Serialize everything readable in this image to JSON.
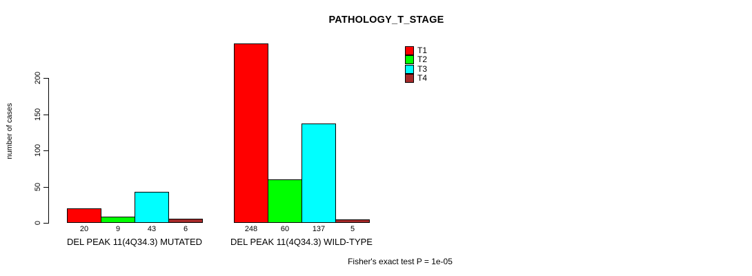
{
  "chart_data": {
    "type": "bar",
    "title": "PATHOLOGY_T_STAGE",
    "ylabel": "number of cases",
    "xlabel": "",
    "categories": [
      "DEL PEAK 11(4Q34.3) MUTATED",
      "DEL PEAK 11(4Q34.3) WILD-TYPE"
    ],
    "series": [
      {
        "name": "T1",
        "color": "#ff0000",
        "values": [
          20,
          248
        ]
      },
      {
        "name": "T2",
        "color": "#00ff00",
        "values": [
          9,
          60
        ]
      },
      {
        "name": "T3",
        "color": "#00ffff",
        "values": [
          43,
          137
        ]
      },
      {
        "name": "T4",
        "color": "#a52a2a",
        "values": [
          6,
          5
        ]
      }
    ],
    "yticks": [
      0,
      50,
      100,
      150,
      200
    ],
    "ylim": [
      0,
      250
    ],
    "grid": false,
    "show_values_under_bars": true,
    "legend_position": "top-right",
    "annotation": "Fisher's exact test P = 1e-05"
  },
  "colors": {
    "background": "#ffffff",
    "axis": "#000000",
    "text": "#000000"
  }
}
